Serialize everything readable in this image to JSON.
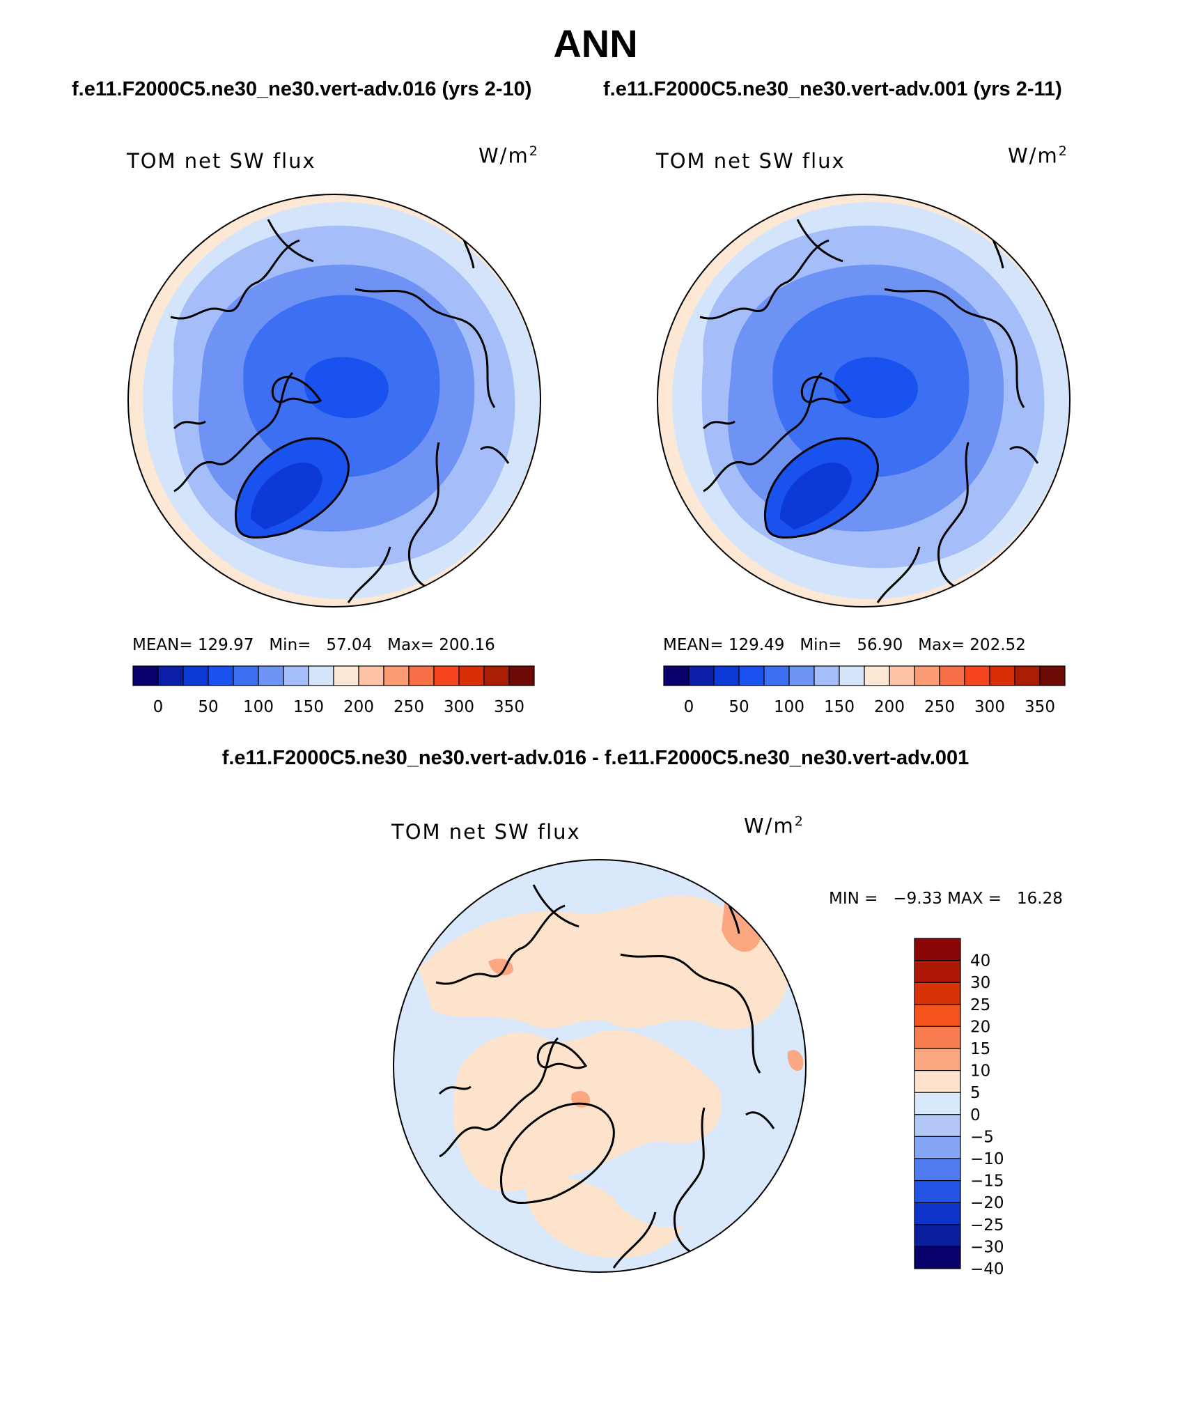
{
  "figure": {
    "title": "ANN",
    "subtitle_left": "f.e11.F2000C5.ne30_ne30.vert-adv.016 (yrs 2-10)",
    "subtitle_right": "f.e11.F2000C5.ne30_ne30.vert-adv.001 (yrs 2-11)",
    "diff_title": "f.e11.F2000C5.ne30_ne30.vert-adv.016 - f.e11.F2000C5.ne30_ne30.vert-adv.001"
  },
  "panels": [
    {
      "label": "TOM net SW flux",
      "units_base": "W/m",
      "units_exp": "2",
      "stats": {
        "mean_label": "MEAN=",
        "mean": "129.97",
        "min_label": "Min=",
        "min": "57.04",
        "max_label": "Max=",
        "max": "200.16"
      }
    },
    {
      "label": "TOM net SW flux",
      "units_base": "W/m",
      "units_exp": "2",
      "stats": {
        "mean_label": "MEAN=",
        "mean": "129.49",
        "min_label": "Min=",
        "min": "56.90",
        "max_label": "Max=",
        "max": "202.52"
      }
    }
  ],
  "diff_panel": {
    "label": "TOM net SW flux",
    "units_base": "W/m",
    "units_exp": "2",
    "min_label": "MIN =",
    "min": "−9.33",
    "max_label": "MAX =",
    "max": "16.28"
  },
  "colorbar_abs": {
    "colors": [
      "#08006b",
      "#0a1fa6",
      "#0d3ad6",
      "#1a52f0",
      "#3d6ff2",
      "#6f93f5",
      "#a5bdf8",
      "#d4e5fb",
      "#fde8d6",
      "#fcc3a6",
      "#fb9c74",
      "#f87048",
      "#f5461f",
      "#d82e06",
      "#aa1d05",
      "#6e0a05"
    ],
    "tick_labels": [
      "0",
      "50",
      "100",
      "150",
      "200",
      "250",
      "300",
      "350"
    ]
  },
  "colorbar_diff": {
    "colors": [
      "#8b0606",
      "#ae1806",
      "#d83208",
      "#f5521c",
      "#f87c4f",
      "#fba782",
      "#fde3cc",
      "#d9e8fb",
      "#b2c9f7",
      "#85a6f4",
      "#4e7bf0",
      "#2454e6",
      "#0d33c8",
      "#0a1f9e",
      "#08006b"
    ],
    "tick_labels": [
      "40",
      "30",
      "25",
      "20",
      "15",
      "10",
      "5",
      "0",
      "−5",
      "−10",
      "−15",
      "−20",
      "−25",
      "−30",
      "−40"
    ]
  }
}
